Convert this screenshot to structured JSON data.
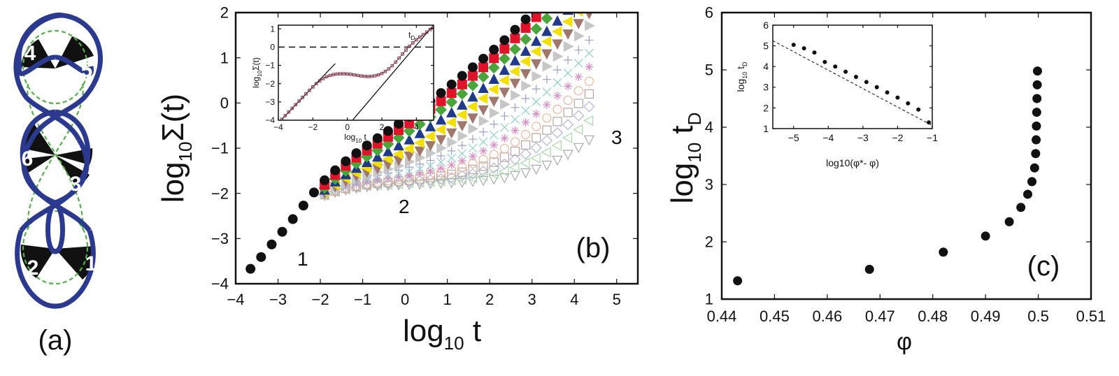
{
  "colors": {
    "knot": "#2b3a8f",
    "dash": "#55b04a",
    "black": "#111111",
    "red": "#e2122b",
    "green": "#4aa63a",
    "blue": "#1f3a8c",
    "yellow": "#f4e000",
    "brown": "#a0776d",
    "gray": "#c7c7c7"
  },
  "panel_a": {
    "label": "(a)",
    "region_numbers": [
      "4",
      "5",
      "6",
      "3",
      "2",
      "1"
    ]
  },
  "chart_data": [
    {
      "id": "b",
      "type": "scatter",
      "panel_label": "(b)",
      "xlabel": "log10 t",
      "ylabel": "log10 Σ(t)",
      "xlim": [
        -4,
        5.5
      ],
      "ylim": [
        -4,
        2
      ],
      "xticks": [
        "−4",
        "−3",
        "−2",
        "−1",
        "0",
        "1",
        "2",
        "3",
        "4",
        "5"
      ],
      "yticks": [
        "−4",
        "−3",
        "−2",
        "−1",
        "0",
        "1",
        "2"
      ],
      "annotations": [
        "1",
        "2",
        "3"
      ],
      "x": [
        -3.65,
        -3.4,
        -3.15,
        -2.9,
        -2.65,
        -2.4,
        -2.15,
        -1.9,
        -1.65,
        -1.4,
        -1.15,
        -0.9,
        -0.65,
        -0.4,
        -0.15,
        0.1,
        0.35,
        0.6,
        0.85,
        1.1,
        1.35,
        1.6,
        1.85,
        2.1,
        2.35,
        2.6,
        2.85,
        3.1,
        3.35,
        3.6,
        3.85,
        4.1,
        4.35,
        4.6,
        4.85,
        5.1,
        5.35
      ],
      "series": [
        {
          "name": "s1",
          "marker": "circle-filled",
          "color": "black",
          "values": [
            -3.67,
            -3.41,
            -3.13,
            -2.85,
            -2.57,
            -2.27,
            -1.98,
            -1.71,
            -1.49,
            -1.29,
            -1.11,
            -0.94,
            -0.78,
            -0.62,
            -0.46,
            -0.3,
            -0.13,
            0.04,
            0.22,
            0.41,
            0.6,
            0.79,
            0.98,
            1.18,
            1.39,
            1.62,
            1.85,
            2.1
          ]
        },
        {
          "name": "s2",
          "marker": "square-filled",
          "color": "red",
          "values": [
            null,
            null,
            null,
            null,
            null,
            null,
            null,
            -1.81,
            -1.59,
            -1.39,
            -1.21,
            -1.05,
            -0.9,
            -0.75,
            -0.6,
            -0.45,
            -0.29,
            -0.13,
            0.04,
            0.22,
            0.41,
            0.6,
            0.79,
            0.99,
            1.2,
            1.43,
            1.66,
            1.9,
            2.15
          ]
        },
        {
          "name": "s3",
          "marker": "diamond-filled",
          "color": "green",
          "values": [
            null,
            null,
            null,
            null,
            null,
            null,
            null,
            -1.88,
            -1.68,
            -1.5,
            -1.34,
            -1.19,
            -1.05,
            -0.91,
            -0.77,
            -0.62,
            -0.47,
            -0.31,
            -0.15,
            0.02,
            0.2,
            0.39,
            0.58,
            0.78,
            0.98,
            1.19,
            1.41,
            1.64,
            1.87,
            2.1
          ]
        },
        {
          "name": "s4",
          "marker": "triangle-up-filled",
          "color": "blue",
          "values": [
            null,
            null,
            null,
            null,
            null,
            null,
            null,
            -1.93,
            -1.75,
            -1.59,
            -1.45,
            -1.32,
            -1.2,
            -1.08,
            -0.95,
            -0.82,
            -0.68,
            -0.53,
            -0.38,
            -0.22,
            -0.05,
            0.13,
            0.32,
            0.52,
            0.72,
            0.93,
            1.14,
            1.36,
            1.58,
            1.81,
            2.05
          ]
        },
        {
          "name": "s5",
          "marker": "triangle-left-filled",
          "color": "yellow",
          "values": [
            null,
            null,
            null,
            null,
            null,
            null,
            null,
            -1.97,
            -1.81,
            -1.67,
            -1.55,
            -1.44,
            -1.34,
            -1.24,
            -1.13,
            -1.01,
            -0.88,
            -0.74,
            -0.59,
            -0.43,
            -0.26,
            -0.08,
            0.1,
            0.3,
            0.5,
            0.7,
            0.92,
            1.14,
            1.36,
            1.58,
            1.8,
            2.03
          ]
        },
        {
          "name": "s6",
          "marker": "triangle-down-filled",
          "color": "brown",
          "values": [
            null,
            null,
            null,
            null,
            null,
            null,
            null,
            -1.99,
            -1.85,
            -1.73,
            -1.62,
            -1.53,
            -1.45,
            -1.36,
            -1.27,
            -1.17,
            -1.06,
            -0.94,
            -0.81,
            -0.66,
            -0.5,
            -0.33,
            -0.15,
            0.04,
            0.24,
            0.44,
            0.65,
            0.87,
            1.09,
            1.31,
            1.53,
            1.76,
            1.98
          ]
        },
        {
          "name": "s7",
          "marker": "triangle-right-filled",
          "color": "gray",
          "values": [
            null,
            null,
            null,
            null,
            null,
            null,
            null,
            -2.0,
            -1.88,
            -1.77,
            -1.68,
            -1.6,
            -1.53,
            -1.46,
            -1.39,
            -1.3,
            -1.21,
            -1.11,
            -1.0,
            -0.87,
            -0.73,
            -0.57,
            -0.4,
            -0.22,
            -0.03,
            0.17,
            0.38,
            0.59,
            0.81,
            1.03,
            1.25,
            1.48,
            1.71
          ]
        },
        {
          "name": "s8",
          "marker": "plus",
          "color": "#9aa0c8",
          "values": [
            null,
            null,
            null,
            null,
            null,
            null,
            null,
            -2.01,
            -1.9,
            -1.81,
            -1.73,
            -1.66,
            -1.6,
            -1.55,
            -1.49,
            -1.42,
            -1.35,
            -1.27,
            -1.17,
            -1.06,
            -0.94,
            -0.8,
            -0.64,
            -0.47,
            -0.29,
            -0.1,
            0.1,
            0.31,
            0.52,
            0.73,
            0.95,
            1.17,
            1.39
          ]
        },
        {
          "name": "s9",
          "marker": "cross",
          "color": "#8fd0c8",
          "values": [
            null,
            null,
            null,
            null,
            null,
            null,
            null,
            -2.02,
            -1.92,
            -1.84,
            -1.77,
            -1.71,
            -1.66,
            -1.62,
            -1.57,
            -1.52,
            -1.46,
            -1.39,
            -1.31,
            -1.22,
            -1.12,
            -1.0,
            -0.86,
            -0.71,
            -0.54,
            -0.36,
            -0.17,
            0.03,
            0.24,
            0.45,
            0.66,
            0.88,
            1.1
          ]
        },
        {
          "name": "s10",
          "marker": "asterisk",
          "color": "#d58fc3",
          "values": [
            null,
            null,
            null,
            null,
            null,
            null,
            null,
            -2.02,
            -1.93,
            -1.86,
            -1.8,
            -1.75,
            -1.71,
            -1.67,
            -1.64,
            -1.6,
            -1.55,
            -1.5,
            -1.44,
            -1.37,
            -1.28,
            -1.18,
            -1.06,
            -0.93,
            -0.78,
            -0.61,
            -0.43,
            -0.24,
            -0.04,
            0.16,
            0.37,
            0.58,
            0.8
          ]
        },
        {
          "name": "s11",
          "marker": "circle-open",
          "color": "#f0b49a",
          "values": [
            null,
            null,
            null,
            null,
            null,
            null,
            null,
            -2.03,
            -1.94,
            -1.88,
            -1.83,
            -1.79,
            -1.75,
            -1.72,
            -1.69,
            -1.66,
            -1.63,
            -1.59,
            -1.54,
            -1.49,
            -1.42,
            -1.34,
            -1.25,
            -1.14,
            -1.01,
            -0.86,
            -0.7,
            -0.52,
            -0.33,
            -0.14,
            0.06,
            0.27,
            0.48
          ]
        },
        {
          "name": "s12",
          "marker": "square-open",
          "color": "#b6a4a0",
          "values": [
            null,
            null,
            null,
            null,
            null,
            null,
            null,
            -2.03,
            -1.95,
            -1.89,
            -1.85,
            -1.81,
            -1.78,
            -1.76,
            -1.73,
            -1.71,
            -1.68,
            -1.65,
            -1.62,
            -1.58,
            -1.53,
            -1.47,
            -1.4,
            -1.31,
            -1.2,
            -1.07,
            -0.93,
            -0.77,
            -0.6,
            -0.41,
            -0.21,
            -0.01,
            0.2
          ]
        },
        {
          "name": "s13",
          "marker": "diamond-open",
          "color": "#b4b4d8",
          "values": [
            null,
            null,
            null,
            null,
            null,
            null,
            null,
            -2.04,
            -1.96,
            -1.9,
            -1.86,
            -1.83,
            -1.8,
            -1.78,
            -1.76,
            -1.74,
            -1.72,
            -1.7,
            -1.68,
            -1.65,
            -1.61,
            -1.57,
            -1.51,
            -1.44,
            -1.35,
            -1.25,
            -1.13,
            -0.99,
            -0.83,
            -0.66,
            -0.48,
            -0.28,
            -0.08
          ]
        },
        {
          "name": "s14",
          "marker": "triangle-left-open",
          "color": "#a8d8a8",
          "values": [
            null,
            null,
            null,
            null,
            null,
            null,
            null,
            -2.04,
            -1.96,
            -1.91,
            -1.87,
            -1.84,
            -1.82,
            -1.8,
            -1.79,
            -1.77,
            -1.76,
            -1.75,
            -1.73,
            -1.71,
            -1.69,
            -1.66,
            -1.62,
            -1.57,
            -1.51,
            -1.43,
            -1.33,
            -1.22,
            -1.09,
            -0.94,
            -0.77,
            -0.59,
            -0.39
          ]
        },
        {
          "name": "s15",
          "marker": "triangle-down-open",
          "color": "#aaaaaa",
          "values": [
            null,
            null,
            null,
            null,
            null,
            null,
            null,
            -2.04,
            -1.97,
            -1.92,
            -1.88,
            -1.85,
            -1.83,
            -1.82,
            -1.81,
            -1.8,
            -1.79,
            -1.78,
            -1.77,
            -1.76,
            -1.75,
            -1.73,
            -1.71,
            -1.68,
            -1.65,
            -1.6,
            -1.54,
            -1.46,
            -1.37,
            -1.26,
            -1.13,
            -0.98,
            -0.81
          ]
        }
      ],
      "inset": {
        "type": "line",
        "xlabel": "log10 t",
        "ylabel": "log10 Σ(t)",
        "xlim": [
          -4,
          5
        ],
        "ylim": [
          -4,
          1.2
        ],
        "xticks": [
          "−4",
          "−2",
          "0",
          "2",
          "4"
        ],
        "yticks": [
          "−4",
          "−3",
          "−2",
          "−1",
          "0",
          "1"
        ],
        "annotation": "tD",
        "dashed_level": 0,
        "x": [
          -3.8,
          -3.6,
          -3.4,
          -3.2,
          -3.0,
          -2.8,
          -2.6,
          -2.4,
          -2.2,
          -2.0,
          -1.8,
          -1.6,
          -1.4,
          -1.2,
          -1.0,
          -0.8,
          -0.6,
          -0.4,
          -0.2,
          0.0,
          0.2,
          0.4,
          0.6,
          0.8,
          1.0,
          1.2,
          1.4,
          1.6,
          1.8,
          2.0,
          2.2,
          2.4,
          2.6,
          2.8,
          3.0,
          3.2,
          3.4,
          3.6,
          3.8,
          4.0,
          4.2,
          4.4,
          4.6,
          4.8,
          5.0
        ],
        "values": [
          -3.95,
          -3.75,
          -3.55,
          -3.35,
          -3.15,
          -2.95,
          -2.75,
          -2.56,
          -2.37,
          -2.18,
          -2.0,
          -1.85,
          -1.72,
          -1.62,
          -1.55,
          -1.5,
          -1.47,
          -1.46,
          -1.46,
          -1.47,
          -1.49,
          -1.52,
          -1.55,
          -1.58,
          -1.6,
          -1.61,
          -1.6,
          -1.57,
          -1.52,
          -1.44,
          -1.33,
          -1.19,
          -1.02,
          -0.82,
          -0.6,
          -0.38,
          -0.16,
          0.05,
          0.23,
          0.4,
          0.55,
          0.68,
          0.82,
          0.96,
          1.1
        ],
        "slope_lines": [
          {
            "x": [
              -3.8,
              -0.7
            ],
            "y": [
              -3.95,
              -0.9
            ]
          },
          {
            "x": [
              0.3,
              4.9
            ],
            "y": [
              -4.0,
              1.1
            ]
          }
        ]
      }
    },
    {
      "id": "c",
      "type": "scatter",
      "panel_label": "(c)",
      "xlabel": "φ",
      "ylabel": "log10 tD",
      "xlim": [
        0.44,
        0.51
      ],
      "ylim": [
        1,
        6
      ],
      "xticks": [
        "0.44",
        "0.45",
        "0.46",
        "0.47",
        "0.48",
        "0.49",
        "0.5",
        "0.51"
      ],
      "yticks": [
        "1",
        "2",
        "3",
        "4",
        "5",
        "6"
      ],
      "x": [
        0.443,
        0.468,
        0.482,
        0.49,
        0.4945,
        0.4967,
        0.498,
        0.4988,
        0.4993,
        0.4995,
        0.4996,
        0.49965,
        0.4997,
        0.49975,
        0.4998,
        0.49985
      ],
      "values": [
        1.32,
        1.52,
        1.82,
        2.1,
        2.35,
        2.6,
        2.83,
        3.05,
        3.29,
        3.54,
        3.78,
        4.02,
        4.26,
        4.5,
        4.74,
        4.98
      ],
      "inset": {
        "type": "scatter",
        "xlabel": "log10(φ*- φ)",
        "ylabel": "log10 tD",
        "xlim": [
          -5.6,
          -1
        ],
        "ylim": [
          1,
          6
        ],
        "xticks": [
          "−5",
          "−4",
          "−3",
          "−2",
          "−1"
        ],
        "yticks": [
          "1",
          "2",
          "3",
          "4",
          "5",
          "6"
        ],
        "x": [
          -5.0,
          -4.7,
          -4.4,
          -4.1,
          -3.8,
          -3.5,
          -3.2,
          -2.9,
          -2.6,
          -2.3,
          -2.0,
          -1.7,
          -1.4,
          -1.1
        ],
        "values": [
          5.05,
          4.88,
          4.68,
          4.22,
          4.0,
          3.75,
          3.5,
          3.25,
          3.0,
          2.75,
          2.5,
          2.22,
          1.92,
          1.3
        ],
        "fit_line": {
          "x": [
            -5.6,
            -1.0
          ],
          "y": [
            5.25,
            1.15
          ]
        }
      }
    }
  ]
}
